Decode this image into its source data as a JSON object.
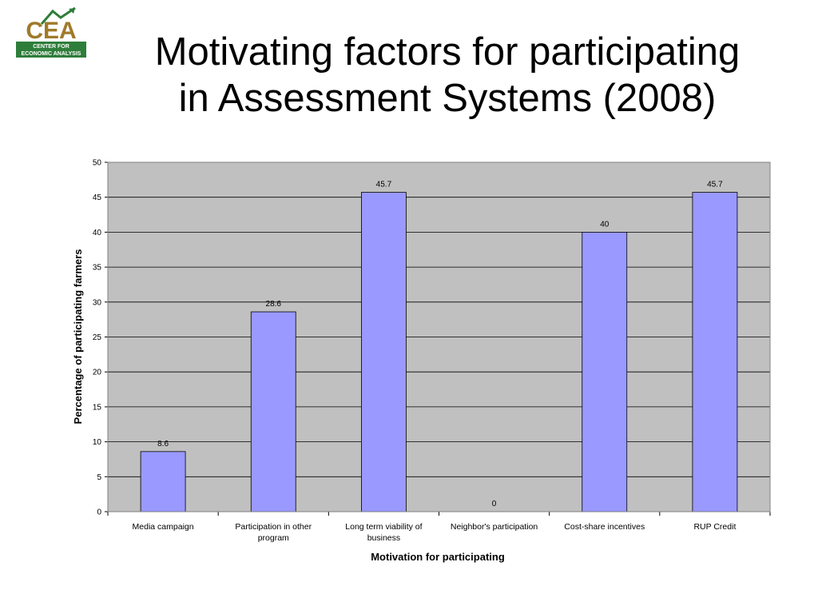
{
  "slide": {
    "title_line1": "Motivating factors for participating",
    "title_line2": "in Assessment Systems (2008)"
  },
  "logo": {
    "text": "CEA",
    "banner_line1": "CENTER FOR",
    "banner_line2": "ECONOMIC ANALYSIS",
    "colors": {
      "text": "#a07a2a",
      "banner": "#2e7d3a",
      "arrow": "#2e7d3a"
    }
  },
  "chart_data": {
    "type": "bar",
    "categories": [
      [
        "Media campaign"
      ],
      [
        "Participation in other",
        "program"
      ],
      [
        "Long term viability of",
        "business"
      ],
      [
        "Neighbor's participation"
      ],
      [
        "Cost-share incentives"
      ],
      [
        "RUP Credit"
      ]
    ],
    "values": [
      8.6,
      28.6,
      45.7,
      0,
      40,
      45.7
    ],
    "data_labels": [
      "8.6",
      "28.6",
      "45.7",
      "0",
      "40",
      "45.7"
    ],
    "xlabel": "Motivation for participating",
    "ylabel": "Percentage of participating farmers",
    "ylim": [
      0,
      50
    ],
    "yticks": [
      0,
      5,
      10,
      15,
      20,
      25,
      30,
      35,
      40,
      45,
      50
    ],
    "grid": true,
    "legend": "none",
    "colors": {
      "bar": "#9999ff",
      "bar_edge": "#000000",
      "plot_bg": "#c0c0c0",
      "gridline": "#000000"
    }
  }
}
